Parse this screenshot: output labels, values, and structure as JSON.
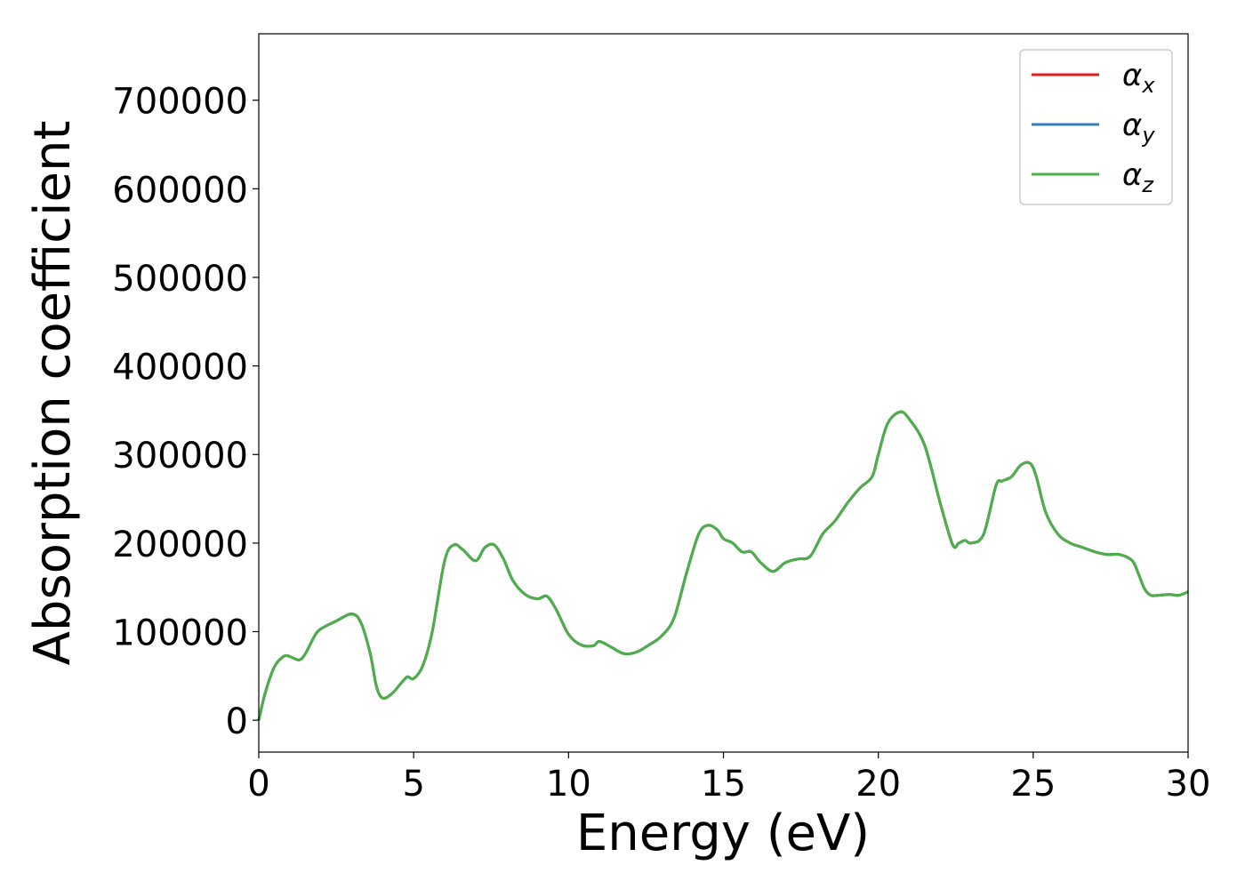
{
  "chart_data": {
    "type": "line",
    "xlabel": "Energy (eV)",
    "ylabel": "Absorption coefficient",
    "xlim": [
      0,
      30
    ],
    "ylim": [
      -36000,
      775000
    ],
    "xticks": [
      0,
      5,
      10,
      15,
      20,
      25,
      30
    ],
    "yticks": [
      0,
      100000,
      200000,
      300000,
      400000,
      500000,
      600000,
      700000
    ],
    "grid": false,
    "legend_position": "top-right",
    "legend": [
      {
        "symbol": "α",
        "subscript": "x",
        "color": "#e41a1c"
      },
      {
        "symbol": "α",
        "subscript": "y",
        "color": "#377eb8"
      },
      {
        "symbol": "α",
        "subscript": "z",
        "color": "#4daf4a"
      }
    ],
    "x": [
      0,
      0.2,
      0.5,
      0.8,
      1.0,
      1.3,
      1.5,
      1.8,
      2.0,
      2.5,
      3.0,
      3.3,
      3.6,
      3.8,
      4.0,
      4.3,
      4.6,
      4.8,
      5.0,
      5.3,
      5.6,
      6.0,
      6.3,
      6.6,
      7.0,
      7.3,
      7.6,
      7.9,
      8.2,
      8.6,
      9.0,
      9.3,
      9.6,
      10.0,
      10.4,
      10.8,
      11.0,
      11.4,
      11.8,
      12.2,
      12.6,
      13.0,
      13.4,
      13.8,
      14.2,
      14.5,
      14.8,
      15.0,
      15.3,
      15.6,
      15.9,
      16.2,
      16.6,
      17.0,
      17.4,
      17.8,
      18.2,
      18.6,
      19.0,
      19.4,
      19.8,
      20.0,
      20.3,
      20.7,
      21.0,
      21.5,
      22.0,
      22.4,
      22.6,
      22.8,
      23.0,
      23.4,
      23.8,
      24.0,
      24.3,
      24.6,
      24.9,
      25.1,
      25.4,
      25.8,
      26.2,
      26.6,
      27.0,
      27.4,
      27.8,
      28.2,
      28.4,
      28.6,
      28.8,
      29.0,
      29.4,
      29.7,
      30.0
    ],
    "series": [
      {
        "color": "#e41a1c",
        "values": [
          0,
          30000,
          60000,
          72000,
          72000,
          68000,
          75000,
          95000,
          103000,
          112000,
          120000,
          110000,
          75000,
          38000,
          25000,
          30000,
          42000,
          49000,
          47000,
          62000,
          100000,
          180000,
          198000,
          192000,
          180000,
          195000,
          198000,
          182000,
          158000,
          142000,
          137000,
          140000,
          125000,
          97000,
          85000,
          84000,
          89000,
          82000,
          75000,
          77000,
          85000,
          95000,
          115000,
          165000,
          210000,
          220000,
          215000,
          205000,
          200000,
          190000,
          190000,
          178000,
          168000,
          178000,
          182000,
          185000,
          210000,
          225000,
          245000,
          262000,
          275000,
          300000,
          335000,
          348000,
          340000,
          310000,
          245000,
          198000,
          200000,
          203000,
          200000,
          210000,
          265000,
          270000,
          275000,
          288000,
          290000,
          275000,
          235000,
          210000,
          200000,
          195000,
          190000,
          187000,
          187000,
          180000,
          165000,
          148000,
          141000,
          141000,
          142000,
          141000,
          145000
        ]
      },
      {
        "color": "#377eb8",
        "values": [
          0,
          30000,
          60000,
          72000,
          72000,
          68000,
          75000,
          95000,
          103000,
          112000,
          120000,
          110000,
          75000,
          38000,
          25000,
          30000,
          42000,
          49000,
          47000,
          62000,
          100000,
          180000,
          198000,
          192000,
          180000,
          195000,
          198000,
          182000,
          158000,
          142000,
          137000,
          140000,
          125000,
          97000,
          85000,
          84000,
          89000,
          82000,
          75000,
          77000,
          85000,
          95000,
          115000,
          165000,
          210000,
          220000,
          215000,
          205000,
          200000,
          190000,
          190000,
          178000,
          168000,
          178000,
          182000,
          185000,
          210000,
          225000,
          245000,
          262000,
          275000,
          300000,
          335000,
          348000,
          340000,
          310000,
          245000,
          198000,
          200000,
          203000,
          200000,
          210000,
          265000,
          270000,
          275000,
          288000,
          290000,
          275000,
          235000,
          210000,
          200000,
          195000,
          190000,
          187000,
          187000,
          180000,
          165000,
          148000,
          141000,
          141000,
          142000,
          141000,
          145000
        ]
      },
      {
        "color": "#4daf4a",
        "values": [
          0,
          30000,
          60000,
          72000,
          72000,
          68000,
          75000,
          95000,
          103000,
          112000,
          120000,
          110000,
          75000,
          38000,
          25000,
          30000,
          42000,
          49000,
          47000,
          62000,
          100000,
          180000,
          198000,
          192000,
          180000,
          195000,
          198000,
          182000,
          158000,
          142000,
          137000,
          140000,
          125000,
          97000,
          85000,
          84000,
          89000,
          82000,
          75000,
          77000,
          85000,
          95000,
          115000,
          165000,
          210000,
          220000,
          215000,
          205000,
          200000,
          190000,
          190000,
          178000,
          168000,
          178000,
          182000,
          185000,
          210000,
          225000,
          245000,
          262000,
          275000,
          300000,
          335000,
          348000,
          340000,
          310000,
          245000,
          198000,
          200000,
          203000,
          200000,
          210000,
          265000,
          270000,
          275000,
          288000,
          290000,
          275000,
          235000,
          210000,
          200000,
          195000,
          190000,
          187000,
          187000,
          180000,
          165000,
          148000,
          141000,
          141000,
          142000,
          141000,
          145000
        ]
      }
    ]
  }
}
